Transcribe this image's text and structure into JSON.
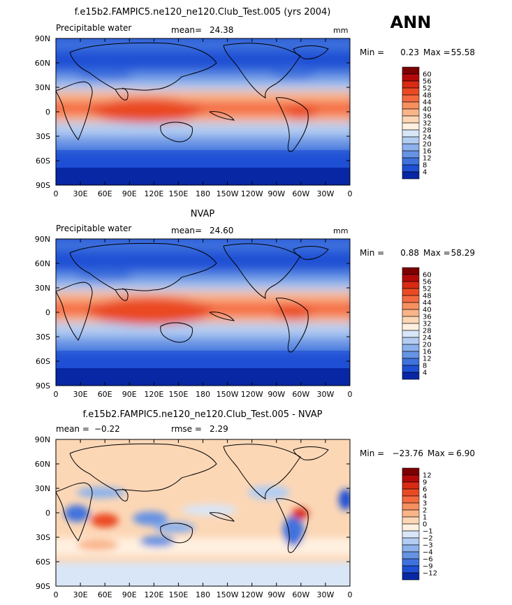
{
  "season_label": "ANN",
  "x_ticks": [
    "0",
    "30E",
    "60E",
    "90E",
    "120E",
    "150E",
    "180",
    "150W",
    "120W",
    "90W",
    "60W",
    "30W",
    "0"
  ],
  "y_ticks": [
    "90N",
    "60N",
    "30N",
    "0",
    "30S",
    "60S",
    "90S"
  ],
  "chart_data": [
    {
      "type": "heatmap",
      "title": "f.e15b2.FAMPIC5.ne120_ne120.Club_Test.005 (yrs 2004)",
      "left_label": "Precipitable water",
      "stat_label": "mean=",
      "stat_value": "24.38",
      "units": "mm",
      "min_label": "Min =",
      "min_value": "0.23",
      "max_label": "Max =",
      "max_value": "55.58",
      "xlim": [
        0,
        360
      ],
      "ylim": [
        -90,
        90
      ],
      "levels": [
        "60",
        "56",
        "52",
        "48",
        "44",
        "40",
        "36",
        "32",
        "28",
        "24",
        "20",
        "16",
        "12",
        "8",
        "4"
      ],
      "colors": [
        "#7d0000",
        "#b40a0a",
        "#d82a14",
        "#ea4a23",
        "#f46a40",
        "#f7905f",
        "#f9b488",
        "#fcd7b6",
        "#fff0e0",
        "#d8e6f8",
        "#b3cdf2",
        "#8cb1ec",
        "#6693e4",
        "#3f72dd",
        "#1e4fd4",
        "#0727a5"
      ]
    },
    {
      "type": "heatmap",
      "title": "NVAP",
      "left_label": "Precipitable water",
      "stat_label": "mean=",
      "stat_value": "24.60",
      "units": "mm",
      "min_label": "Min =",
      "min_value": "0.88",
      "max_label": "Max =",
      "max_value": "58.29",
      "xlim": [
        0,
        360
      ],
      "ylim": [
        -90,
        90
      ],
      "levels": [
        "60",
        "56",
        "52",
        "48",
        "44",
        "40",
        "36",
        "32",
        "28",
        "24",
        "20",
        "16",
        "12",
        "8",
        "4"
      ],
      "colors": [
        "#7d0000",
        "#b40a0a",
        "#d82a14",
        "#ea4a23",
        "#f46a40",
        "#f7905f",
        "#f9b488",
        "#fcd7b6",
        "#fff0e0",
        "#d8e6f8",
        "#b3cdf2",
        "#8cb1ec",
        "#6693e4",
        "#3f72dd",
        "#1e4fd4",
        "#0727a5"
      ]
    },
    {
      "type": "heatmap",
      "title": "f.e15b2.FAMPIC5.ne120_ne120.Club_Test.005 - NVAP",
      "left_label": "mean =",
      "left_value": "−0.22",
      "stat_label": "rmse =",
      "stat_value": "2.29",
      "units": "",
      "min_label": "Min =",
      "min_value": "−23.76",
      "max_label": "Max =",
      "max_value": "6.90",
      "xlim": [
        0,
        360
      ],
      "ylim": [
        -90,
        90
      ],
      "levels": [
        "12",
        "9",
        "6",
        "4",
        "3",
        "2",
        "1",
        "0",
        "−1",
        "−2",
        "−3",
        "−4",
        "−6",
        "−9",
        "−12"
      ],
      "colors": [
        "#7d0000",
        "#b40a0a",
        "#d82a14",
        "#ea4a23",
        "#f46a40",
        "#f7905f",
        "#f9b488",
        "#fcd7b6",
        "#fff0e0",
        "#d8e6f8",
        "#b3cdf2",
        "#8cb1ec",
        "#6693e4",
        "#3f72dd",
        "#1e4fd4",
        "#0727a5"
      ]
    }
  ]
}
